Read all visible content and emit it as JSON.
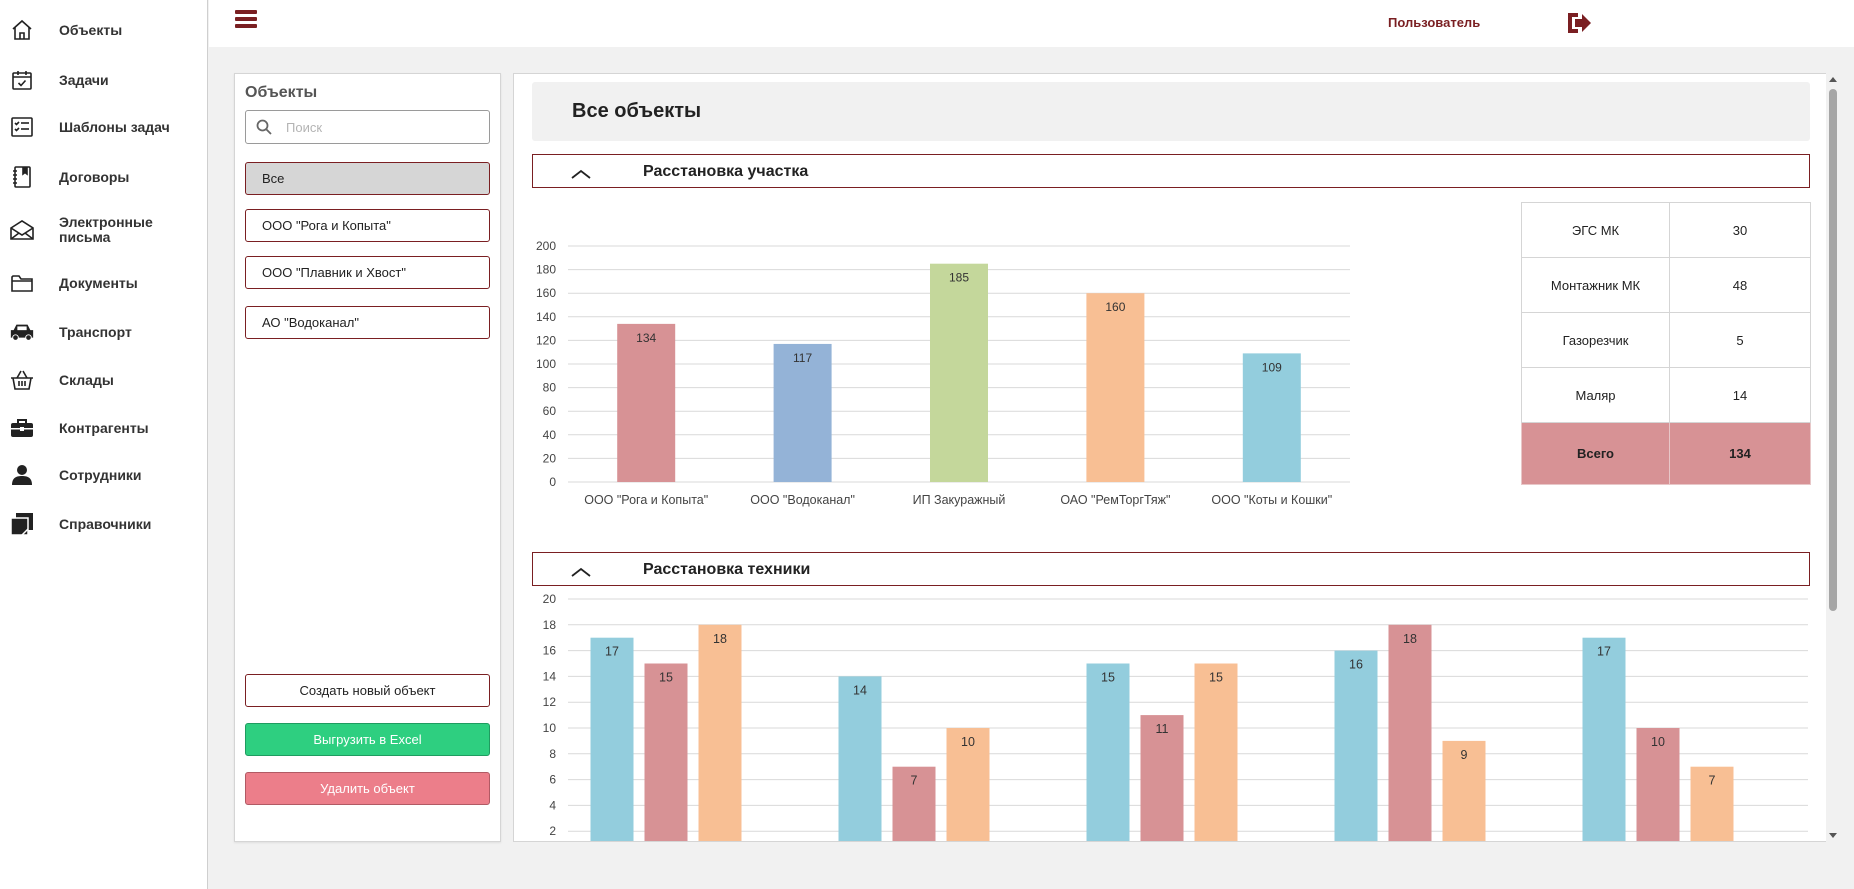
{
  "nav": {
    "items": [
      {
        "label": "Объекты",
        "icon": "home-icon"
      },
      {
        "label": "Задачи",
        "icon": "calendar-check-icon"
      },
      {
        "label": "Шаблоны задач",
        "icon": "checklist-icon"
      },
      {
        "label": "Договоры",
        "icon": "notebook-icon"
      },
      {
        "label": "Электронные письма",
        "icon": "envelope-icon"
      },
      {
        "label": "Документы",
        "icon": "folder-icon"
      },
      {
        "label": "Транспорт",
        "icon": "car-icon"
      },
      {
        "label": "Склады",
        "icon": "basket-icon"
      },
      {
        "label": "Контрагенты",
        "icon": "briefcase-icon"
      },
      {
        "label": "Сотрудники",
        "icon": "person-icon"
      },
      {
        "label": "Справочники",
        "icon": "notes-icon"
      }
    ]
  },
  "topbar": {
    "user_label": "Пользователь",
    "accent": "#7a1f22"
  },
  "objects_panel": {
    "title": "Объекты",
    "search_placeholder": "Поиск",
    "items": [
      {
        "label": "Все",
        "active": true
      },
      {
        "label": "ООО \"Рога и Копыта\"",
        "active": false
      },
      {
        "label": "ООО \"Плавник и Хвост\"",
        "active": false
      },
      {
        "label": "АО \"Водоканал\"",
        "active": false
      }
    ],
    "create_label": "Создать новый объект",
    "excel_label": "Выгрузить в Excel",
    "delete_label": "Удалить объект"
  },
  "main": {
    "title": "Все объекты",
    "section1_title": "Расстановка участка",
    "section2_title": "Расстановка техники",
    "summary": {
      "rows": [
        {
          "role": "ЭГС МК",
          "count": "30"
        },
        {
          "role": "Монтажник МК",
          "count": "48"
        },
        {
          "role": "Газорезчик",
          "count": "5"
        },
        {
          "role": "Маляр",
          "count": "14"
        }
      ],
      "total_label": "Всего",
      "total_value": "134"
    }
  },
  "chart_data": [
    {
      "type": "bar",
      "title": "Расстановка участка",
      "categories": [
        "ООО \"Рога и Копыта\"",
        "ООО \"Водоканал\"",
        "ИП Закуражный",
        "ОАО \"РемТоргТяж\"",
        "ООО \"Коты и Кошки\""
      ],
      "values": [
        134,
        117,
        185,
        160,
        109
      ],
      "colors": [
        "#d79295",
        "#94b3d7",
        "#c4d79b",
        "#f8bf94",
        "#93cddd"
      ],
      "ylim": [
        0,
        200
      ],
      "yticks": [
        0,
        20,
        40,
        60,
        80,
        100,
        120,
        140,
        160,
        180,
        200
      ],
      "grid": true,
      "data_labels": true
    },
    {
      "type": "bar",
      "title": "Расстановка техники",
      "groups": 5,
      "series": [
        {
          "color": "#93cddd",
          "values": [
            17,
            14,
            15,
            16,
            17
          ]
        },
        {
          "color": "#d79295",
          "values": [
            15,
            7,
            11,
            18,
            10
          ]
        },
        {
          "color": "#f8bf94",
          "values": [
            18,
            10,
            15,
            9,
            7
          ]
        }
      ],
      "ylim": [
        0,
        20
      ],
      "yticks_visible": [
        2,
        4,
        6,
        8,
        10,
        12,
        14,
        16,
        18,
        20
      ],
      "grid": true,
      "data_labels": true
    }
  ]
}
